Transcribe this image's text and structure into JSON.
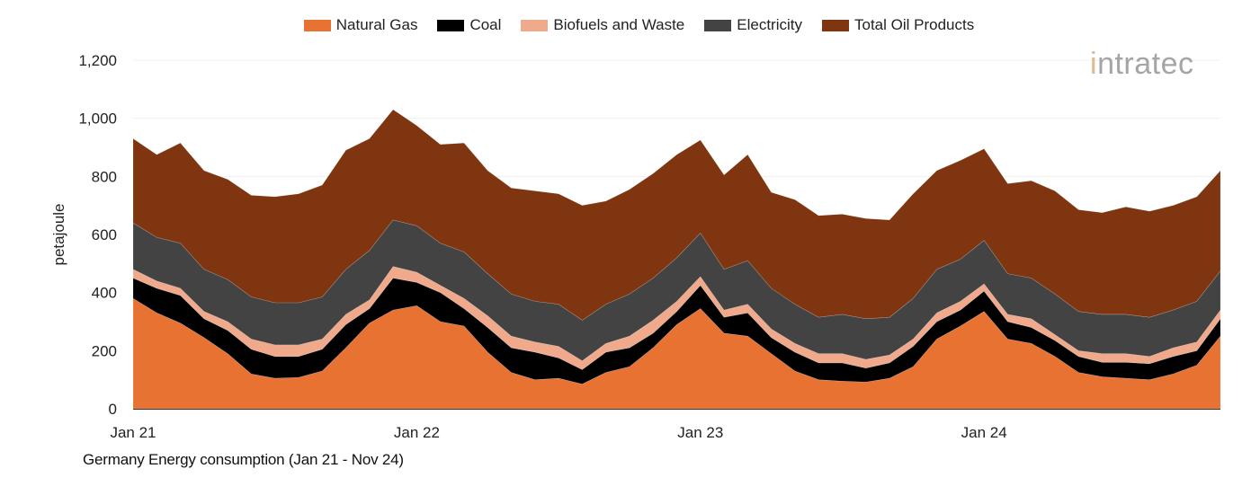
{
  "chart_data": {
    "type": "area",
    "stacked": true,
    "title": "Germany Energy consumption (Jan 21 - Nov 24)",
    "xlabel": "",
    "ylabel": "petajoule",
    "ylim": [
      0,
      1200
    ],
    "yticks": [
      "0",
      "200",
      "400",
      "600",
      "800",
      "1,000",
      "1,200"
    ],
    "ytick_values": [
      0,
      200,
      400,
      600,
      800,
      1000,
      1200
    ],
    "x_start": "2021-01",
    "x_end": "2024-11",
    "xticks": [
      "Jan 21",
      "Jan 22",
      "Jan 23",
      "Jan 24"
    ],
    "grid": true,
    "legend_position": "top",
    "series": [
      {
        "name": "Natural Gas",
        "color": "#E87232",
        "values": [
          380,
          330,
          295,
          245,
          190,
          120,
          105,
          108,
          130,
          210,
          295,
          340,
          355,
          300,
          285,
          195,
          125,
          100,
          105,
          85,
          125,
          145,
          210,
          290,
          345,
          260,
          250,
          190,
          130,
          100,
          95,
          92,
          105,
          145,
          240,
          285,
          335,
          240,
          225,
          180,
          125,
          110,
          105,
          100,
          120,
          150,
          250
        ]
      },
      {
        "name": "Coal",
        "color": "#000000",
        "values": [
          70,
          85,
          95,
          65,
          80,
          85,
          75,
          72,
          75,
          80,
          50,
          110,
          80,
          100,
          60,
          85,
          85,
          95,
          70,
          50,
          70,
          65,
          50,
          45,
          80,
          55,
          80,
          55,
          65,
          58,
          63,
          48,
          53,
          70,
          60,
          55,
          70,
          60,
          55,
          55,
          55,
          50,
          55,
          55,
          60,
          50,
          60
        ]
      },
      {
        "name": "Biofuels and Waste",
        "color": "#F0A98A",
        "values": [
          30,
          25,
          25,
          25,
          30,
          35,
          40,
          40,
          35,
          35,
          30,
          40,
          35,
          25,
          35,
          40,
          40,
          35,
          40,
          30,
          30,
          40,
          45,
          35,
          30,
          25,
          30,
          30,
          30,
          32,
          32,
          30,
          27,
          25,
          30,
          30,
          25,
          25,
          30,
          20,
          20,
          30,
          30,
          25,
          30,
          30,
          30
        ]
      },
      {
        "name": "Electricity",
        "color": "#434343",
        "values": [
          160,
          150,
          155,
          145,
          145,
          145,
          145,
          145,
          145,
          155,
          170,
          160,
          160,
          145,
          160,
          145,
          145,
          140,
          145,
          140,
          135,
          145,
          145,
          150,
          150,
          140,
          150,
          140,
          135,
          125,
          135,
          140,
          130,
          140,
          150,
          145,
          150,
          140,
          140,
          140,
          135,
          135,
          135,
          135,
          130,
          140,
          135
        ]
      },
      {
        "name": "Total Oil Products",
        "color": "#7F3510",
        "values": [
          290,
          285,
          345,
          340,
          345,
          350,
          365,
          375,
          385,
          410,
          385,
          380,
          345,
          340,
          375,
          355,
          365,
          380,
          380,
          395,
          355,
          360,
          360,
          355,
          320,
          325,
          365,
          330,
          360,
          350,
          345,
          345,
          335,
          360,
          340,
          340,
          315,
          310,
          335,
          355,
          350,
          350,
          370,
          365,
          360,
          360,
          345
        ]
      }
    ]
  },
  "logo": {
    "text": "intratec"
  }
}
